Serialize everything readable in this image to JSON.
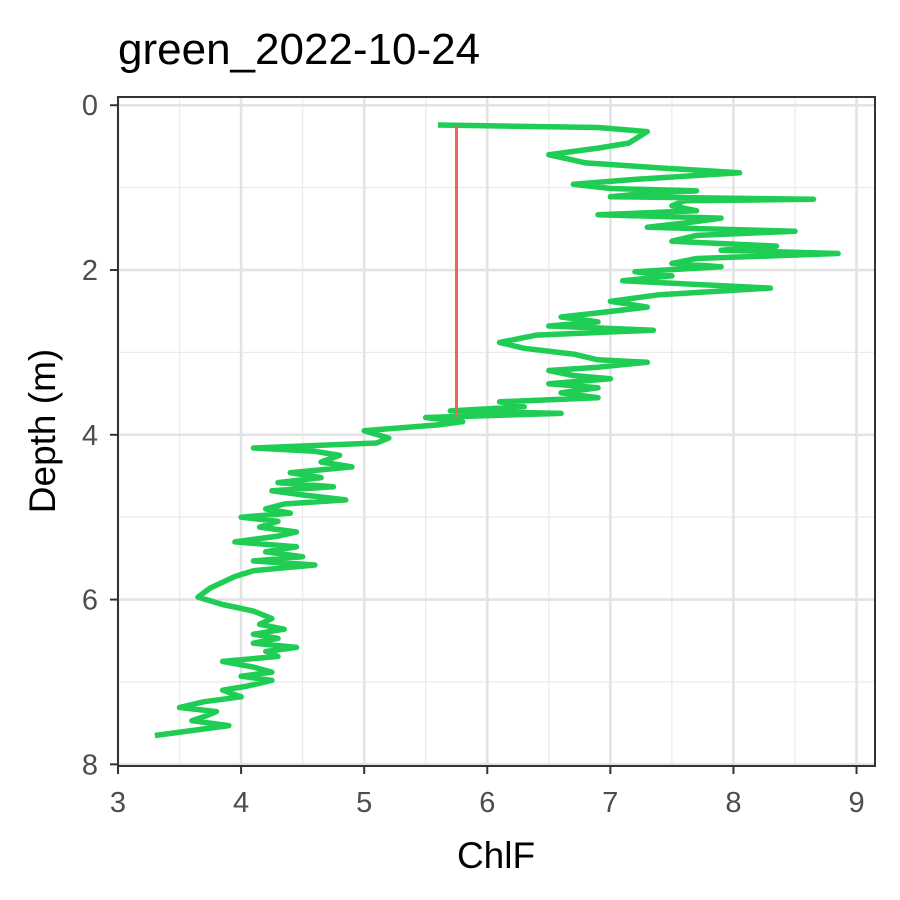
{
  "chart_data": {
    "type": "line",
    "title": "green_2022-10-24",
    "xlabel": "ChlF",
    "ylabel": "Depth (m)",
    "xlim": [
      3,
      9.15
    ],
    "ylim": [
      8.02,
      -0.1
    ],
    "y_reversed": true,
    "x_ticks": [
      "3",
      "4",
      "5",
      "6",
      "7",
      "8",
      "9"
    ],
    "y_ticks": [
      "0",
      "2",
      "4",
      "6",
      "8"
    ],
    "grid": true,
    "legend": "none",
    "series": [
      {
        "color": "#1fcc54",
        "points": [
          [
            5.6,
            0.24
          ],
          [
            6.9,
            0.27
          ],
          [
            7.3,
            0.32
          ],
          [
            7.15,
            0.46
          ],
          [
            6.9,
            0.52
          ],
          [
            6.5,
            0.6
          ],
          [
            6.8,
            0.7
          ],
          [
            7.4,
            0.76
          ],
          [
            8.05,
            0.82
          ],
          [
            7.2,
            0.9
          ],
          [
            6.7,
            0.96
          ],
          [
            7.0,
            1.01
          ],
          [
            7.7,
            1.04
          ],
          [
            7.3,
            1.07
          ],
          [
            7.0,
            1.11
          ],
          [
            8.65,
            1.14
          ],
          [
            7.6,
            1.16
          ],
          [
            7.5,
            1.22
          ],
          [
            7.7,
            1.28
          ],
          [
            6.9,
            1.33
          ],
          [
            7.9,
            1.37
          ],
          [
            7.6,
            1.43
          ],
          [
            7.3,
            1.48
          ],
          [
            8.5,
            1.53
          ],
          [
            7.7,
            1.58
          ],
          [
            7.5,
            1.65
          ],
          [
            8.35,
            1.71
          ],
          [
            7.9,
            1.76
          ],
          [
            8.85,
            1.8
          ],
          [
            7.7,
            1.86
          ],
          [
            7.5,
            1.92
          ],
          [
            7.9,
            1.96
          ],
          [
            7.2,
            2.02
          ],
          [
            7.5,
            2.07
          ],
          [
            7.1,
            2.13
          ],
          [
            8.3,
            2.22
          ],
          [
            7.4,
            2.3
          ],
          [
            7.0,
            2.38
          ],
          [
            7.3,
            2.45
          ],
          [
            6.9,
            2.52
          ],
          [
            6.6,
            2.57
          ],
          [
            6.9,
            2.63
          ],
          [
            6.5,
            2.68
          ],
          [
            7.35,
            2.73
          ],
          [
            6.4,
            2.79
          ],
          [
            6.1,
            2.88
          ],
          [
            6.3,
            2.95
          ],
          [
            6.7,
            3.02
          ],
          [
            6.9,
            3.09
          ],
          [
            7.3,
            3.12
          ],
          [
            6.9,
            3.18
          ],
          [
            6.5,
            3.22
          ],
          [
            6.7,
            3.28
          ],
          [
            7.0,
            3.32
          ],
          [
            6.5,
            3.38
          ],
          [
            6.9,
            3.43
          ],
          [
            6.6,
            3.49
          ],
          [
            6.9,
            3.55
          ],
          [
            6.1,
            3.6
          ],
          [
            6.3,
            3.66
          ],
          [
            5.7,
            3.71
          ],
          [
            6.6,
            3.74
          ],
          [
            5.5,
            3.79
          ],
          [
            5.8,
            3.84
          ],
          [
            5.6,
            3.88
          ],
          [
            5.0,
            3.95
          ],
          [
            5.2,
            4.04
          ],
          [
            5.1,
            4.1
          ],
          [
            4.1,
            4.16
          ],
          [
            4.6,
            4.2
          ],
          [
            4.8,
            4.25
          ],
          [
            4.65,
            4.33
          ],
          [
            4.9,
            4.39
          ],
          [
            4.4,
            4.46
          ],
          [
            4.65,
            4.52
          ],
          [
            4.3,
            4.58
          ],
          [
            4.75,
            4.63
          ],
          [
            4.25,
            4.68
          ],
          [
            4.5,
            4.73
          ],
          [
            4.85,
            4.79
          ],
          [
            4.35,
            4.84
          ],
          [
            4.2,
            4.9
          ],
          [
            4.4,
            4.95
          ],
          [
            4.0,
            5.0
          ],
          [
            4.3,
            5.05
          ],
          [
            4.15,
            5.12
          ],
          [
            4.45,
            5.18
          ],
          [
            4.3,
            5.23
          ],
          [
            3.95,
            5.3
          ],
          [
            4.45,
            5.36
          ],
          [
            4.2,
            5.42
          ],
          [
            4.5,
            5.48
          ],
          [
            4.1,
            5.53
          ],
          [
            4.6,
            5.58
          ],
          [
            4.1,
            5.65
          ],
          [
            3.95,
            5.72
          ],
          [
            3.75,
            5.86
          ],
          [
            3.65,
            5.97
          ],
          [
            3.85,
            6.06
          ],
          [
            4.1,
            6.14
          ],
          [
            4.25,
            6.23
          ],
          [
            4.15,
            6.3
          ],
          [
            4.35,
            6.36
          ],
          [
            4.1,
            6.42
          ],
          [
            4.3,
            6.47
          ],
          [
            4.1,
            6.53
          ],
          [
            4.45,
            6.58
          ],
          [
            4.2,
            6.63
          ],
          [
            4.3,
            6.69
          ],
          [
            3.85,
            6.75
          ],
          [
            4.1,
            6.82
          ],
          [
            4.25,
            6.88
          ],
          [
            4.0,
            6.93
          ],
          [
            4.25,
            6.98
          ],
          [
            4.05,
            7.05
          ],
          [
            3.85,
            7.1
          ],
          [
            4.0,
            7.18
          ],
          [
            3.7,
            7.24
          ],
          [
            3.5,
            7.31
          ],
          [
            3.8,
            7.36
          ],
          [
            3.7,
            7.42
          ],
          [
            3.6,
            7.47
          ],
          [
            3.9,
            7.53
          ],
          [
            3.3,
            7.65
          ]
        ]
      },
      {
        "color": "#f0625a",
        "points": [
          [
            5.75,
            0.24
          ],
          [
            5.75,
            3.78
          ]
        ]
      }
    ]
  }
}
